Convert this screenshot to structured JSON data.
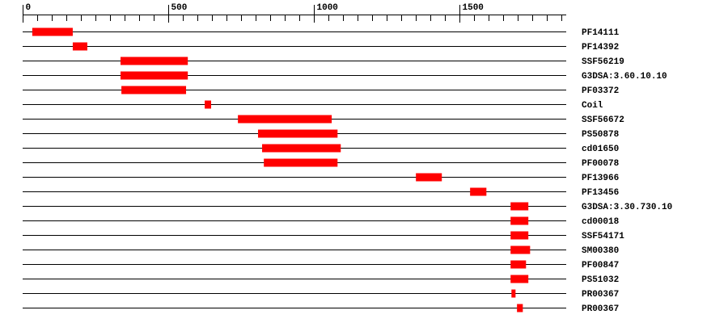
{
  "chart_data": {
    "type": "range",
    "xlim": [
      0,
      1866
    ],
    "xticks": [
      0,
      500,
      1000,
      1500
    ],
    "xminorticks": [
      50,
      100,
      150,
      200,
      250,
      300,
      350,
      400,
      450,
      550,
      600,
      650,
      700,
      750,
      800,
      850,
      900,
      950,
      1050,
      1100,
      1150,
      1200,
      1250,
      1300,
      1350,
      1400,
      1450,
      1550,
      1600,
      1650,
      1700,
      1750,
      1800,
      1850
    ],
    "color": "#ff0000",
    "series": [
      {
        "name": "PF14111",
        "start": 33,
        "end": 172
      },
      {
        "name": "PF14392",
        "start": 172,
        "end": 222
      },
      {
        "name": "SSF56219",
        "start": 336,
        "end": 567
      },
      {
        "name": "G3DSA:3.60.10.10",
        "start": 336,
        "end": 567
      },
      {
        "name": "PF03372",
        "start": 339,
        "end": 561
      },
      {
        "name": "Coil",
        "start": 625,
        "end": 647
      },
      {
        "name": "SSF56672",
        "start": 739,
        "end": 1061
      },
      {
        "name": "PS50878",
        "start": 808,
        "end": 1081
      },
      {
        "name": "cd01650",
        "start": 822,
        "end": 1092
      },
      {
        "name": "PF00078",
        "start": 828,
        "end": 1081
      },
      {
        "name": "PF13966",
        "start": 1350,
        "end": 1439
      },
      {
        "name": "PF13456",
        "start": 1536,
        "end": 1592
      },
      {
        "name": "G3DSA:3.30.730.10",
        "start": 1675,
        "end": 1736
      },
      {
        "name": "cd00018",
        "start": 1675,
        "end": 1736
      },
      {
        "name": "SSF54171",
        "start": 1675,
        "end": 1736
      },
      {
        "name": "SM00380",
        "start": 1675,
        "end": 1742
      },
      {
        "name": "PF00847",
        "start": 1675,
        "end": 1728
      },
      {
        "name": "PS51032",
        "start": 1675,
        "end": 1736
      },
      {
        "name": "PR00367",
        "start": 1678,
        "end": 1692
      },
      {
        "name": "PR00367",
        "start": 1697,
        "end": 1717
      }
    ]
  }
}
